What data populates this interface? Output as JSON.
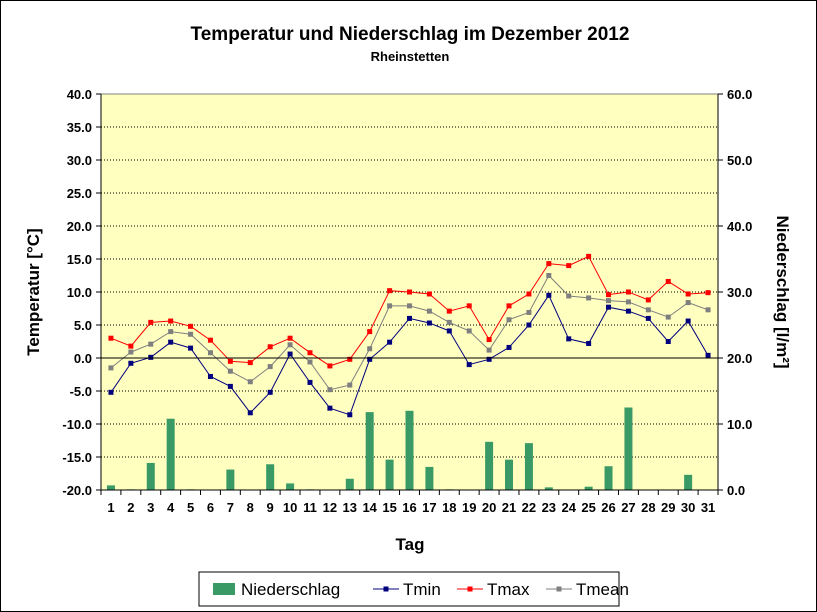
{
  "chart_data": {
    "type": "bar+line",
    "title": "Temperatur und Niederschlag im Dezember 2012",
    "subtitle": "Rheinstetten",
    "xlabel": "Tag",
    "ylabel_left": "Temperatur [°C]",
    "ylabel_right": "Niederschlag [l/m²]",
    "ylim_left": [
      -20,
      40
    ],
    "ylim_right": [
      0,
      60
    ],
    "yticks_left": [
      "40.0",
      "35.0",
      "30.0",
      "25.0",
      "20.0",
      "15.0",
      "10.0",
      "5.0",
      "0.0",
      "-5.0",
      "-10.0",
      "-15.0",
      "-20.0"
    ],
    "yticks_right": [
      "60.0",
      "50.0",
      "40.0",
      "30.0",
      "20.0",
      "10.0",
      "0.0"
    ],
    "categories": [
      "1",
      "2",
      "3",
      "4",
      "5",
      "6",
      "7",
      "8",
      "9",
      "10",
      "11",
      "12",
      "13",
      "14",
      "15",
      "16",
      "17",
      "18",
      "19",
      "20",
      "21",
      "22",
      "23",
      "24",
      "25",
      "26",
      "27",
      "28",
      "29",
      "30",
      "31"
    ],
    "grid": "horizontal",
    "legend_position": "bottom",
    "series": [
      {
        "name": "Niederschlag",
        "kind": "bar",
        "axis": "right",
        "color": "#3a9a66",
        "values": [
          0.7,
          0.1,
          4.1,
          10.8,
          0.1,
          0,
          3.1,
          0,
          3.9,
          1.0,
          0.1,
          0,
          1.7,
          11.8,
          4.6,
          12.0,
          3.5,
          0.1,
          0,
          7.3,
          4.6,
          7.1,
          0.4,
          0,
          0.5,
          3.6,
          12.5,
          0,
          0,
          2.3,
          0
        ]
      },
      {
        "name": "Tmin",
        "kind": "line",
        "axis": "left",
        "color": "#00007f",
        "values": [
          -5.2,
          -0.8,
          0.1,
          2.4,
          1.5,
          -2.8,
          -4.3,
          -8.3,
          -5.2,
          0.6,
          -3.7,
          -7.6,
          -8.6,
          -0.2,
          2.4,
          6.0,
          5.3,
          4.1,
          -1.0,
          -0.2,
          1.6,
          5.0,
          9.5,
          2.9,
          2.2,
          7.7,
          7.1,
          6.0,
          2.5,
          5.6,
          0.4
        ]
      },
      {
        "name": "Tmax",
        "kind": "line",
        "axis": "left",
        "color": "#ff0000",
        "values": [
          3.0,
          1.8,
          5.4,
          5.6,
          4.8,
          2.7,
          -0.5,
          -0.7,
          1.7,
          3.0,
          0.8,
          -1.2,
          -0.2,
          4.0,
          10.2,
          10.0,
          9.7,
          7.1,
          7.9,
          2.8,
          7.9,
          9.7,
          14.3,
          14.0,
          15.4,
          9.6,
          10.0,
          8.8,
          11.6,
          9.7,
          9.9
        ]
      },
      {
        "name": "Tmean",
        "kind": "line",
        "axis": "left",
        "color": "#7f7f7f",
        "values": [
          -1.5,
          0.9,
          2.1,
          4.0,
          3.6,
          0.8,
          -2.0,
          -3.6,
          -1.3,
          2.0,
          -0.6,
          -4.8,
          -4.1,
          1.4,
          7.9,
          7.9,
          7.1,
          5.4,
          4.1,
          1.2,
          5.8,
          6.9,
          12.5,
          9.4,
          9.1,
          8.7,
          8.5,
          7.3,
          6.2,
          8.4,
          7.3
        ]
      }
    ]
  }
}
